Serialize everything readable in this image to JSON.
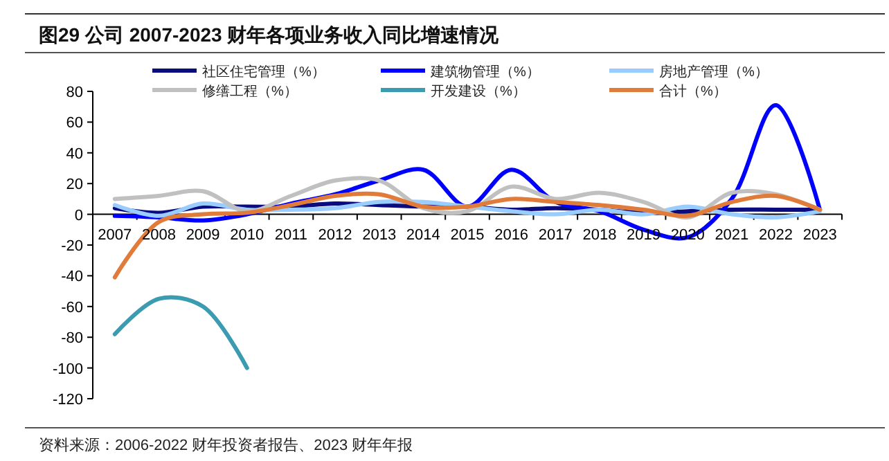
{
  "chart_data": {
    "type": "line",
    "title": "图29 公司 2007-2023 财年各项业务收入同比增速情况",
    "categories": [
      "2007",
      "2008",
      "2009",
      "2010",
      "2011",
      "2012",
      "2013",
      "2014",
      "2015",
      "2016",
      "2017",
      "2018",
      "2019",
      "2020",
      "2021",
      "2022",
      "2023"
    ],
    "series": [
      {
        "name": "社区住宅管理（%）",
        "color": "#0b0b80",
        "values": [
          4,
          1,
          5,
          5,
          5,
          7,
          6,
          5,
          5,
          3,
          4,
          3,
          1,
          2,
          3,
          3,
          3
        ]
      },
      {
        "name": "建筑物管理（%）",
        "color": "#0000ff",
        "values": [
          -1,
          -2,
          -4,
          0,
          7,
          13,
          22,
          29,
          5,
          29,
          8,
          2,
          -10,
          -15,
          10,
          71,
          3
        ]
      },
      {
        "name": "房地产管理（%）",
        "color": "#99ccff",
        "values": [
          6,
          -1,
          7,
          3,
          3,
          4,
          8,
          8,
          5,
          2,
          0,
          3,
          0,
          5,
          0,
          -2,
          2
        ]
      },
      {
        "name": "修缮工程（%）",
        "color": "#c0c0c0",
        "values": [
          10,
          12,
          15,
          2,
          12,
          22,
          22,
          4,
          2,
          18,
          10,
          14,
          8,
          -2,
          14,
          13,
          3
        ]
      },
      {
        "name": "开发建设（%）",
        "color": "#3b9bb0",
        "values": [
          -78,
          -55,
          -60,
          -100,
          null,
          null,
          null,
          null,
          null,
          null,
          null,
          null,
          null,
          null,
          null,
          null,
          null
        ]
      },
      {
        "name": "合计（%）",
        "color": "#e07b39",
        "values": [
          -41,
          -5,
          0,
          1,
          6,
          12,
          13,
          5,
          5,
          10,
          8,
          6,
          3,
          -1,
          8,
          12,
          3
        ]
      }
    ],
    "ylim": [
      -120,
      80
    ],
    "yticks": [
      -120,
      -100,
      -80,
      -60,
      -40,
      -20,
      0,
      20,
      40,
      60,
      80
    ],
    "legend": "top",
    "grid": false,
    "annotations": [
      "资料来源：2006-2022 财年投资者报告、2023 财年年报"
    ]
  }
}
